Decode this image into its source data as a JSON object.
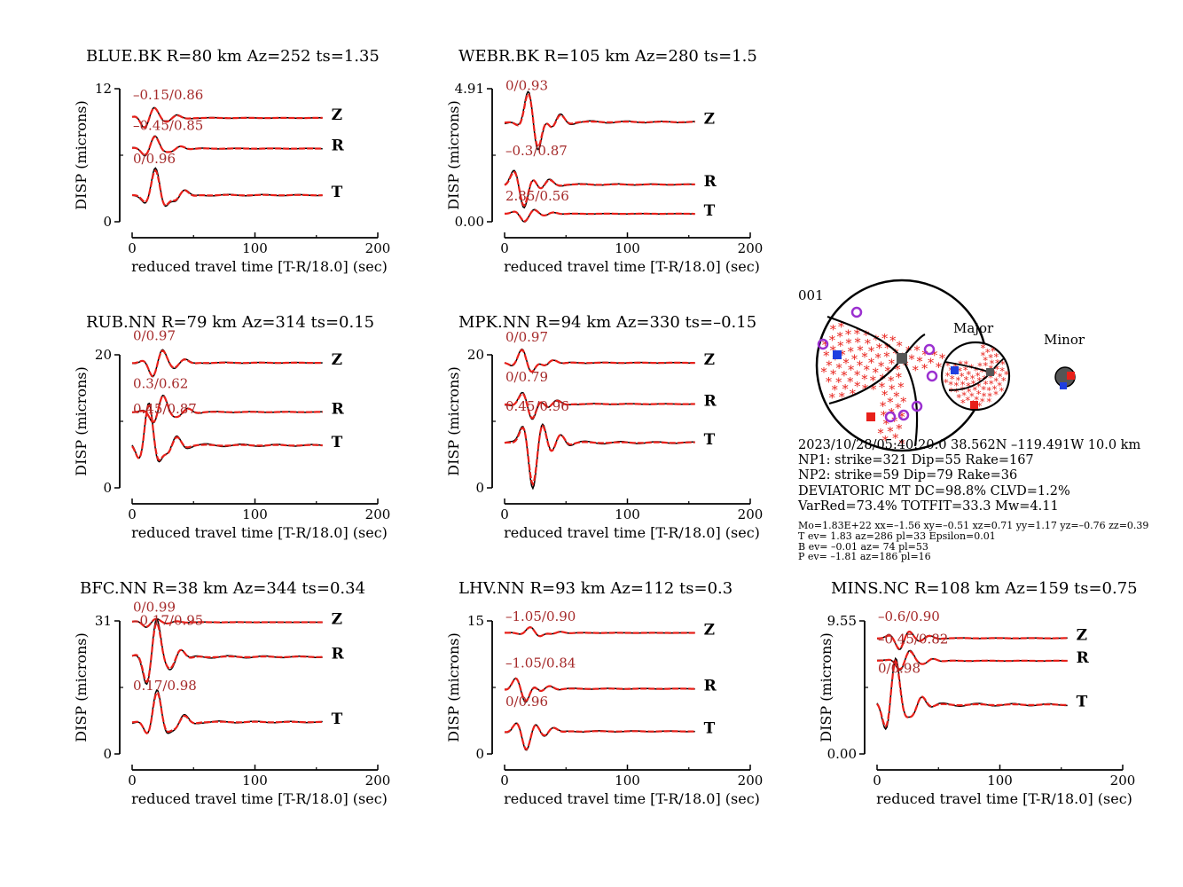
{
  "colors": {
    "observed": "#000000",
    "synthetic": "#e8201a",
    "fit_label": "#a52a2a",
    "tension": "#e8201a",
    "pressure": "#1f3fe0",
    "polarity": "#9b30d0",
    "axis_gray": "#555555"
  },
  "xlabel": "reduced travel time [T-R/18.0] (sec)",
  "ylabel": "DISP (microns)",
  "event_id": "001",
  "beachball_labels": {
    "major": "Major",
    "minor": "Minor"
  },
  "info": {
    "origin": "2023/10/28/05:40:20.0 38.562N –119.491W 10.0 km",
    "np1": "NP1: strike=321 Dip=55 Rake=167",
    "np2": "NP2: strike=59 Dip=79 Rake=36",
    "mt": "DEVIATORIC MT DC=98.8% CLVD=1.2%",
    "varred": "VarRed=73.4% TOTFIT=33.3 Mw=4.11",
    "mo": "Mo=1.83E+22 xx=–1.56 xy=–0.51 xz=0.71 yy=1.17 yz=–0.76 zz=0.39",
    "t_ev": "T ev=  1.83 az=286 pl=33 Epsilon=0.01",
    "b_ev": "B ev= –0.01 az= 74 pl=53",
    "p_ev": "P ev= –1.81 az=186 pl=16"
  },
  "chart_data": [
    {
      "type": "line",
      "title": "BLUE.BK R=80 km Az=252 ts=1.35",
      "xlabel": "reduced travel time [T-R/18.0] (sec)",
      "ylabel": "DISP (microns)",
      "xlim": [
        0,
        200
      ],
      "xticks": [
        "0",
        "100",
        "200"
      ],
      "yticks": [
        "0",
        "12"
      ],
      "components": [
        {
          "name": "Z",
          "shift_fit": "–0.15/0.86",
          "baseline": 0.78,
          "peak": 150,
          "amp": 0.1
        },
        {
          "name": "R",
          "shift_fit": "–0.45/0.85",
          "baseline": 0.55,
          "peak": 12,
          "amp": 0.1
        },
        {
          "name": "T",
          "shift_fit": "0/0.96",
          "baseline": 0.2,
          "peak": 20,
          "amp": 0.2
        }
      ]
    },
    {
      "type": "line",
      "title": "WEBR.BK R=105 km Az=280 ts=1.5",
      "xlabel": "reduced travel time [T-R/18.0] (sec)",
      "ylabel": "DISP (microns)",
      "xlim": [
        0,
        200
      ],
      "xticks": [
        "0",
        "100",
        "200"
      ],
      "yticks": [
        "0.00",
        "4.91"
      ],
      "components": [
        {
          "name": "Z",
          "shift_fit": "0/0.93",
          "baseline": 0.75,
          "peak": 150,
          "amp": 0.28
        },
        {
          "name": "R",
          "shift_fit": "–0.3/0.87",
          "baseline": 0.28,
          "peak": 12,
          "amp": 0.18
        },
        {
          "name": "T",
          "shift_fit": "2.85/0.56",
          "baseline": 0.06,
          "peak": 20,
          "amp": 0.06
        }
      ]
    },
    {
      "type": "line",
      "title": "RUB.NN R=79 km Az=314 ts=0.15",
      "xlabel": "reduced travel time [T-R/18.0] (sec)",
      "ylabel": "DISP (microns)",
      "xlim": [
        0,
        200
      ],
      "xticks": [
        "0",
        "100",
        "200"
      ],
      "yticks": [
        "0",
        "20"
      ],
      "components": [
        {
          "name": "Z",
          "shift_fit": "0/0.97",
          "baseline": 0.94,
          "peak": 150,
          "amp": 0.13
        },
        {
          "name": "R",
          "shift_fit": "0.3/0.62",
          "baseline": 0.57,
          "peak": 12,
          "amp": 0.14
        },
        {
          "name": "T",
          "shift_fit": "0.45/0.87",
          "baseline": 0.32,
          "peak": 20,
          "amp": 0.33
        }
      ]
    },
    {
      "type": "line",
      "title": "MPK.NN R=94 km Az=330 ts=–0.15",
      "xlabel": "reduced travel time [T-R/18.0] (sec)",
      "ylabel": "DISP (microns)",
      "xlim": [
        0,
        200
      ],
      "xticks": [
        "0",
        "100",
        "200"
      ],
      "yticks": [
        "0",
        "20"
      ],
      "components": [
        {
          "name": "Z",
          "shift_fit": "0/0.97",
          "baseline": 0.94,
          "peak": 150,
          "amp": 0.12
        },
        {
          "name": "R",
          "shift_fit": "0/0.79",
          "baseline": 0.63,
          "peak": 12,
          "amp": 0.13
        },
        {
          "name": "T",
          "shift_fit": "0.45/0.96",
          "baseline": 0.34,
          "peak": 20,
          "amp": 0.33
        }
      ]
    },
    {
      "type": "line",
      "title": "BFC.NN R=38 km Az=344 ts=0.34",
      "xlabel": "reduced travel time [T-R/18.0] (sec)",
      "ylabel": "DISP (microns)",
      "xlim": [
        0,
        200
      ],
      "xticks": [
        "0",
        "100",
        "200"
      ],
      "yticks": [
        "0",
        "31"
      ],
      "components": [
        {
          "name": "Z",
          "shift_fit": "0/0.99",
          "baseline": 0.99,
          "peak": 150,
          "amp": 0.04
        },
        {
          "name": "R",
          "shift_fit": "–0.17/0.95",
          "baseline": 0.73,
          "peak": 12,
          "amp": 0.3
        },
        {
          "name": "T",
          "shift_fit": "0.17/0.98",
          "baseline": 0.24,
          "peak": 20,
          "amp": 0.24
        }
      ]
    },
    {
      "type": "line",
      "title": "LHV.NN R=93 km Az=112 ts=0.3",
      "xlabel": "reduced travel time [T-R/18.0] (sec)",
      "ylabel": "DISP (microns)",
      "xlim": [
        0,
        200
      ],
      "xticks": [
        "0",
        "100",
        "200"
      ],
      "yticks": [
        "0",
        "15"
      ],
      "components": [
        {
          "name": "Z",
          "shift_fit": "–1.05/0.90",
          "baseline": 0.91,
          "peak": 150,
          "amp": 0.05
        },
        {
          "name": "R",
          "shift_fit": "–1.05/0.84",
          "baseline": 0.49,
          "peak": 12,
          "amp": 0.12
        },
        {
          "name": "T",
          "shift_fit": "0/0.96",
          "baseline": 0.17,
          "peak": 20,
          "amp": 0.15
        }
      ]
    },
    {
      "type": "line",
      "title": "MINS.NC R=108 km Az=159 ts=0.75",
      "xlabel": "reduced travel time [T-R/18.0] (sec)",
      "ylabel": "DISP (microns)",
      "xlim": [
        0,
        200
      ],
      "xticks": [
        "0",
        "100",
        "200"
      ],
      "yticks": [
        "0.00",
        "9.55"
      ],
      "components": [
        {
          "name": "Z",
          "shift_fit": "–0.6/0.90",
          "baseline": 0.87,
          "peak": 150,
          "amp": 0.09
        },
        {
          "name": "R",
          "shift_fit": "–0.45/0.82",
          "baseline": 0.7,
          "peak": 12,
          "amp": 0.09
        },
        {
          "name": "T",
          "shift_fit": "0/0.98",
          "baseline": 0.37,
          "peak": 20,
          "amp": 0.36
        }
      ]
    }
  ]
}
